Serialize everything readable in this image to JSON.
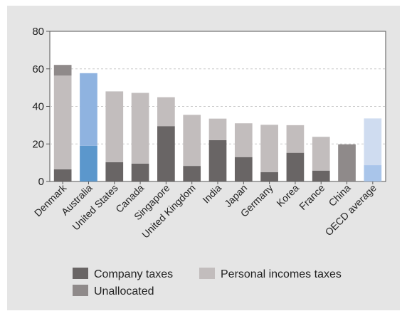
{
  "chart_data": {
    "type": "bar",
    "stacked": true,
    "title": "",
    "xlabel": "",
    "ylabel": "",
    "ylim": [
      0,
      80
    ],
    "yticks": [
      "0",
      "20",
      "40",
      "60",
      "80"
    ],
    "grid": true,
    "legend_placement": "bottom",
    "categories": [
      "Denmark",
      "Australia",
      "United States",
      "Canada",
      "Singapore",
      "United Kingdom",
      "India",
      "Japan",
      "Germany",
      "Korea",
      "France",
      "China",
      "OECD average"
    ],
    "series": [
      {
        "name": "Company taxes",
        "color": "#696565",
        "values": [
          6.5,
          0,
          10.3,
          9.5,
          29.5,
          8.3,
          22.0,
          13.0,
          5.0,
          15.3,
          5.8,
          0,
          0
        ]
      },
      {
        "name": "Personal incomes taxes",
        "color": "#c2bdbd",
        "values": [
          49.9,
          0,
          37.7,
          37.7,
          15.4,
          27.2,
          11.5,
          18.0,
          25.2,
          14.7,
          18.0,
          0,
          0
        ]
      },
      {
        "name": "Unallocated",
        "color": "#8f8a8a",
        "values": [
          5.7,
          0,
          0,
          0,
          0,
          0,
          0,
          0,
          0,
          0,
          0,
          19.8,
          0
        ]
      }
    ],
    "highlights": [
      {
        "category": "Australia",
        "segments": [
          {
            "value": 19.0,
            "color": "#5b97cc"
          },
          {
            "value": 38.7,
            "color": "#8fb3e0"
          }
        ]
      },
      {
        "category": "OECD average",
        "segments": [
          {
            "value": 8.7,
            "color": "#a9c5ea"
          },
          {
            "value": 24.9,
            "color": "#cfdcf0"
          }
        ]
      }
    ]
  },
  "legend": {
    "company": "Company taxes",
    "personal": "Personal incomes taxes",
    "unallocated": "Unallocated"
  }
}
